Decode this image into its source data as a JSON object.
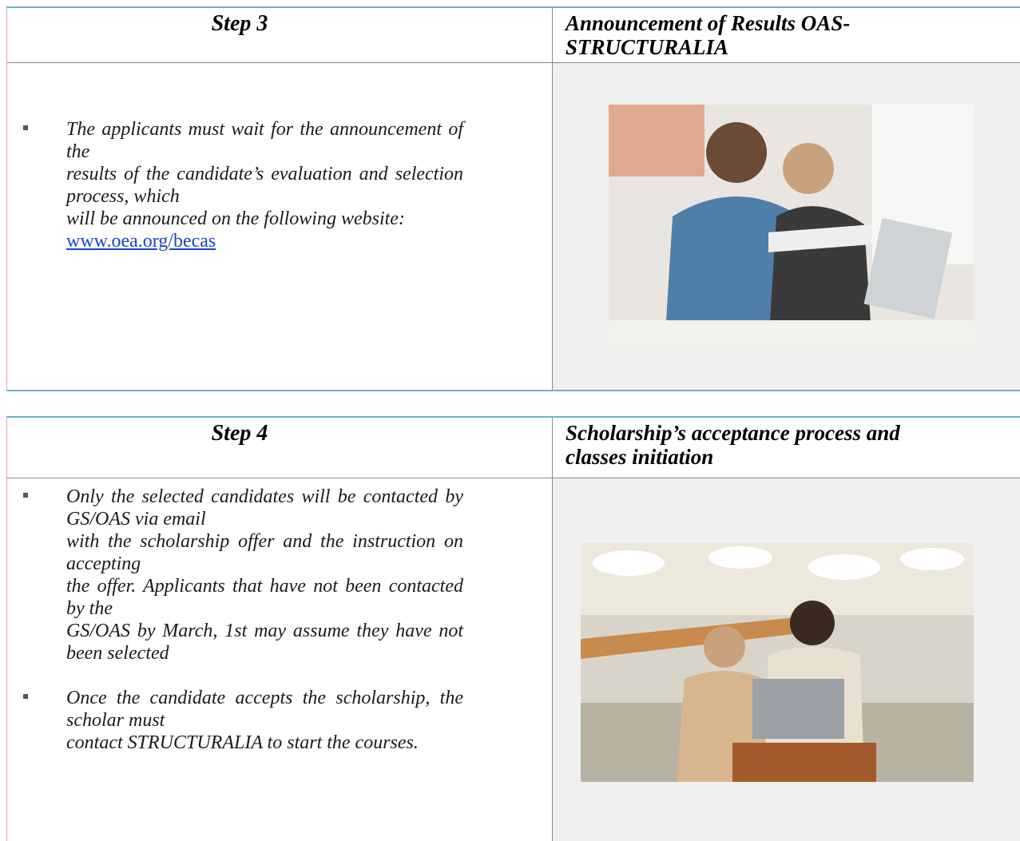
{
  "sections": [
    {
      "step": "Step 3",
      "title": "Announcement of Results OAS-STRUCTURALIA",
      "bullets": [
        {
          "segments": [
            "The applicants must wait for the announcement of the",
            "results of the candidate’s evaluation and selection process, which",
            "will be announced on the following website:"
          ],
          "link": "www.oea.org/becas"
        }
      ]
    },
    {
      "step": "Step 4",
      "title": "Scholarship’s acceptance process and classes initiation",
      "bullets": [
        {
          "segments": [
            "Only the selected candidates will be contacted by GS/OAS via email",
            "with the scholarship offer and the instruction on accepting",
            "the offer. Applicants that have not been contacted by the",
            "GS/OAS by March, 1st may assume they have not been selected"
          ]
        },
        {
          "segments": [
            "Once the candidate accepts the scholarship, the scholar must",
            "contact STRUCTURALIA to start the courses."
          ]
        }
      ]
    }
  ]
}
